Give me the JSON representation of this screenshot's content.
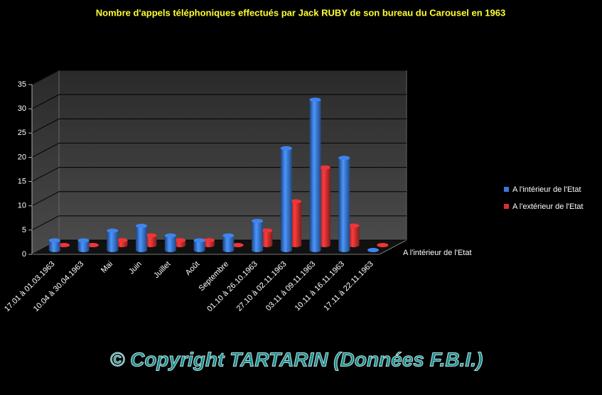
{
  "chart_data": {
    "type": "bar3d",
    "title": "Nombre d'appels téléphoniques effectués par Jack RUBY de son bureau du Carousel en 1963",
    "categories": [
      "17.01 à 01.03.1963",
      "10.04 à 30.04.1963",
      "Mai",
      "Juin",
      "Juillet",
      "Août",
      "Septembre",
      "01.10 à 26.10.1963",
      "27.10 à 02.11.1963",
      "03.11 à 09.11.1963",
      "10.11 à 16.11.1963",
      "17.11 à 22.11.1963"
    ],
    "series": [
      {
        "name": "A l'intérieur de l'Etat",
        "color": "#3a78d8",
        "values": [
          2,
          2,
          4,
          5,
          3,
          2,
          3,
          6,
          21,
          31,
          19,
          0
        ]
      },
      {
        "name": "A l'extérieur de l'Etat",
        "color": "#d83030",
        "values": [
          0,
          0,
          1,
          2,
          1,
          1,
          0,
          3,
          9,
          16,
          4,
          0
        ]
      }
    ],
    "ylim": [
      0,
      35
    ],
    "yticks": [
      0,
      5,
      10,
      15,
      20,
      25,
      30,
      35
    ],
    "grid": true,
    "annotation": "© Copyright  TARTARIN (Données F.B.I.)"
  }
}
